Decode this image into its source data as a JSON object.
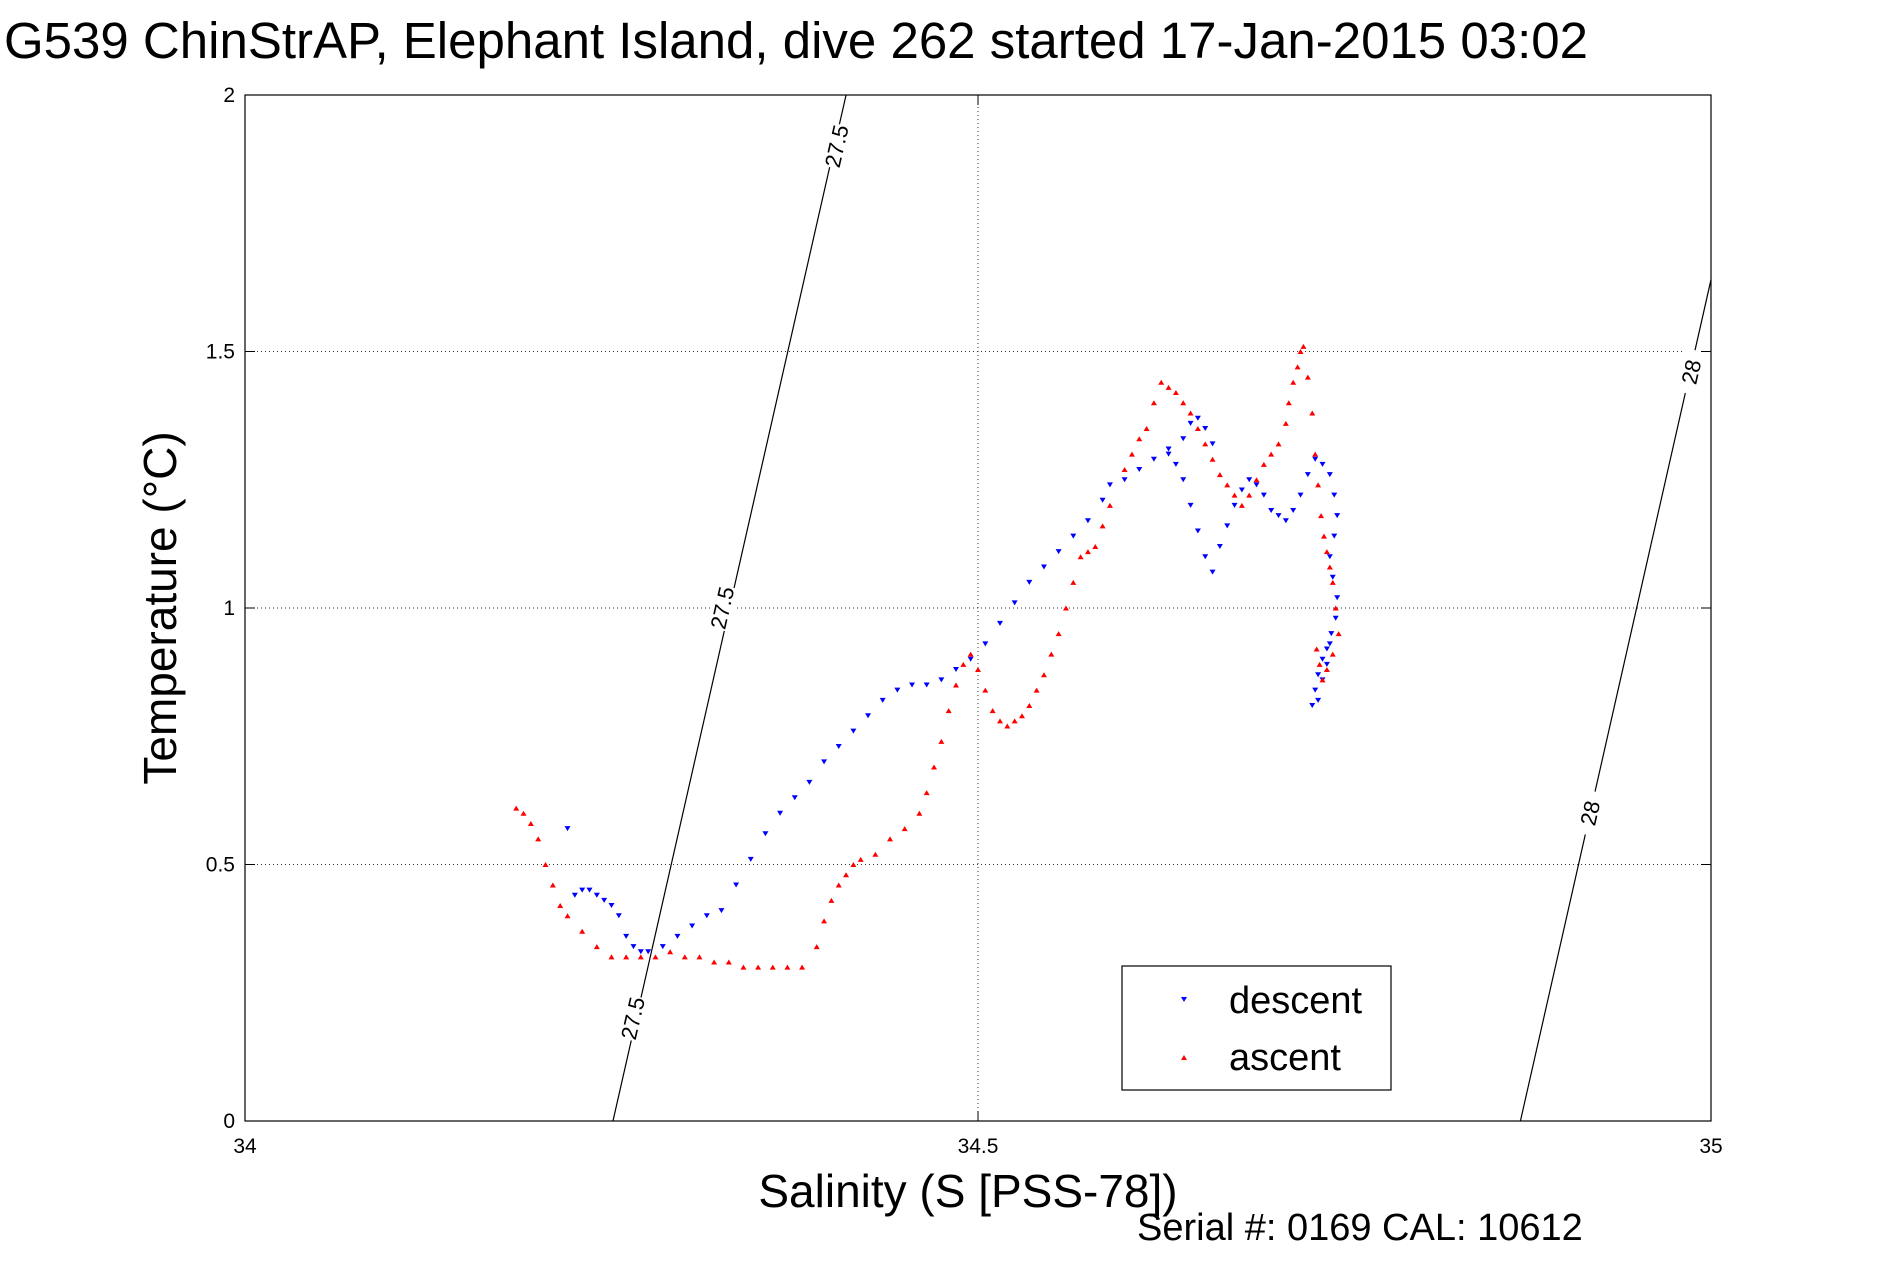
{
  "chart_data": {
    "type": "scatter",
    "title": "G539 ChinStrAP, Elephant Island, dive 262 started 17-Jan-2015 03:02",
    "xlabel": "Salinity (S [PSS-78])",
    "ylabel": "Temperature (°C)",
    "xlim": [
      34,
      35
    ],
    "ylim": [
      0,
      2
    ],
    "xticks": [
      34,
      34.5,
      35
    ],
    "xtick_labels": [
      "34",
      "34.5",
      "35"
    ],
    "yticks": [
      0,
      0.5,
      1,
      1.5,
      2
    ],
    "ytick_labels": [
      "0",
      "0.5",
      "1",
      "1.5",
      "2"
    ],
    "grid": true,
    "legend_position": "bottom-right",
    "footer": "Serial #: 0169 CAL: 10612",
    "isopycnals": [
      {
        "label": "27.5",
        "points": [
          [
            34.251,
            0
          ],
          [
            34.41,
            2
          ]
        ],
        "label_positions": [
          [
            34.265,
            0.2
          ],
          [
            34.326,
            1.0
          ],
          [
            34.404,
            1.9
          ]
        ]
      },
      {
        "label": "28",
        "points": [
          [
            34.87,
            0
          ],
          [
            35.0,
            1.64
          ]
        ],
        "label_positions": [
          [
            34.918,
            0.6
          ],
          [
            34.987,
            1.46
          ]
        ]
      }
    ],
    "series": [
      {
        "name": "descent",
        "color": "#0000ff",
        "marker": "triangle-down",
        "x": [
          34.225,
          34.23,
          34.235,
          34.24,
          34.245,
          34.25,
          34.255,
          34.26,
          34.265,
          34.27,
          34.275,
          34.22,
          34.285,
          34.295,
          34.305,
          34.315,
          34.325,
          34.335,
          34.345,
          34.355,
          34.365,
          34.375,
          34.385,
          34.395,
          34.405,
          34.415,
          34.425,
          34.435,
          34.445,
          34.455,
          34.465,
          34.475,
          34.485,
          34.495,
          34.505,
          34.515,
          34.525,
          34.535,
          34.545,
          34.555,
          34.565,
          34.575,
          34.585,
          34.59,
          34.6,
          34.61,
          34.62,
          34.63,
          34.64,
          34.645,
          34.65,
          34.655,
          34.66,
          34.63,
          34.635,
          34.64,
          34.645,
          34.65,
          34.655,
          34.66,
          34.665,
          34.67,
          34.675,
          34.68,
          34.685,
          34.69,
          34.695,
          34.7,
          34.705,
          34.71,
          34.715,
          34.72,
          34.725,
          34.73,
          34.735,
          34.74,
          34.743,
          34.745,
          34.743,
          34.74,
          34.742,
          34.745,
          34.744,
          34.741,
          34.738,
          34.735,
          34.732,
          34.73,
          34.728,
          34.732,
          34.735,
          34.738,
          34.74
        ],
        "y": [
          0.44,
          0.45,
          0.45,
          0.44,
          0.43,
          0.42,
          0.4,
          0.36,
          0.34,
          0.33,
          0.33,
          0.57,
          0.34,
          0.36,
          0.38,
          0.4,
          0.41,
          0.46,
          0.51,
          0.56,
          0.6,
          0.63,
          0.66,
          0.7,
          0.73,
          0.76,
          0.79,
          0.82,
          0.84,
          0.85,
          0.85,
          0.86,
          0.88,
          0.9,
          0.93,
          0.97,
          1.01,
          1.05,
          1.08,
          1.11,
          1.14,
          1.17,
          1.21,
          1.24,
          1.25,
          1.27,
          1.29,
          1.31,
          1.33,
          1.36,
          1.37,
          1.35,
          1.32,
          1.3,
          1.28,
          1.25,
          1.2,
          1.15,
          1.1,
          1.07,
          1.12,
          1.16,
          1.2,
          1.23,
          1.25,
          1.24,
          1.22,
          1.19,
          1.18,
          1.17,
          1.19,
          1.22,
          1.26,
          1.29,
          1.28,
          1.26,
          1.22,
          1.18,
          1.14,
          1.1,
          1.06,
          1.02,
          0.98,
          0.95,
          0.92,
          0.9,
          0.87,
          0.84,
          0.81,
          0.82,
          0.86,
          0.89,
          0.93
        ]
      },
      {
        "name": "ascent",
        "color": "#ff0000",
        "marker": "triangle-up",
        "x": [
          34.185,
          34.19,
          34.195,
          34.2,
          34.205,
          34.21,
          34.215,
          34.22,
          34.23,
          34.24,
          34.25,
          34.26,
          34.27,
          34.28,
          34.29,
          34.3,
          34.31,
          34.32,
          34.33,
          34.34,
          34.35,
          34.36,
          34.37,
          34.38,
          34.39,
          34.395,
          34.4,
          34.405,
          34.41,
          34.415,
          34.42,
          34.43,
          34.44,
          34.45,
          34.46,
          34.465,
          34.47,
          34.475,
          34.48,
          34.485,
          34.49,
          34.495,
          34.5,
          34.505,
          34.51,
          34.515,
          34.52,
          34.525,
          34.53,
          34.535,
          34.54,
          34.545,
          34.55,
          34.555,
          34.56,
          34.565,
          34.57,
          34.575,
          34.58,
          34.585,
          34.59,
          34.6,
          34.605,
          34.61,
          34.615,
          34.62,
          34.625,
          34.63,
          34.635,
          34.64,
          34.645,
          34.65,
          34.655,
          34.66,
          34.665,
          34.67,
          34.675,
          34.68,
          34.685,
          34.69,
          34.695,
          34.7,
          34.705,
          34.71,
          34.712,
          34.715,
          34.718,
          34.72,
          34.722,
          34.725,
          34.728,
          34.73,
          34.732,
          34.734,
          34.736,
          34.738,
          34.74,
          34.742,
          34.744,
          34.746,
          34.742,
          34.738,
          34.735,
          34.733,
          34.731
        ],
        "y": [
          0.61,
          0.6,
          0.58,
          0.55,
          0.5,
          0.46,
          0.42,
          0.4,
          0.37,
          0.34,
          0.32,
          0.32,
          0.32,
          0.32,
          0.33,
          0.32,
          0.32,
          0.31,
          0.31,
          0.3,
          0.3,
          0.3,
          0.3,
          0.3,
          0.34,
          0.39,
          0.43,
          0.46,
          0.48,
          0.5,
          0.51,
          0.52,
          0.55,
          0.57,
          0.6,
          0.64,
          0.69,
          0.74,
          0.8,
          0.85,
          0.89,
          0.91,
          0.88,
          0.84,
          0.8,
          0.78,
          0.77,
          0.78,
          0.79,
          0.81,
          0.84,
          0.87,
          0.91,
          0.95,
          1.0,
          1.05,
          1.1,
          1.11,
          1.12,
          1.16,
          1.2,
          1.27,
          1.3,
          1.33,
          1.35,
          1.4,
          1.44,
          1.43,
          1.42,
          1.4,
          1.38,
          1.35,
          1.32,
          1.29,
          1.26,
          1.24,
          1.22,
          1.2,
          1.22,
          1.25,
          1.28,
          1.3,
          1.32,
          1.36,
          1.4,
          1.44,
          1.47,
          1.5,
          1.51,
          1.45,
          1.38,
          1.3,
          1.24,
          1.18,
          1.14,
          1.11,
          1.08,
          1.05,
          1.0,
          0.95,
          0.91,
          0.88,
          0.86,
          0.89,
          0.92
        ]
      }
    ]
  }
}
